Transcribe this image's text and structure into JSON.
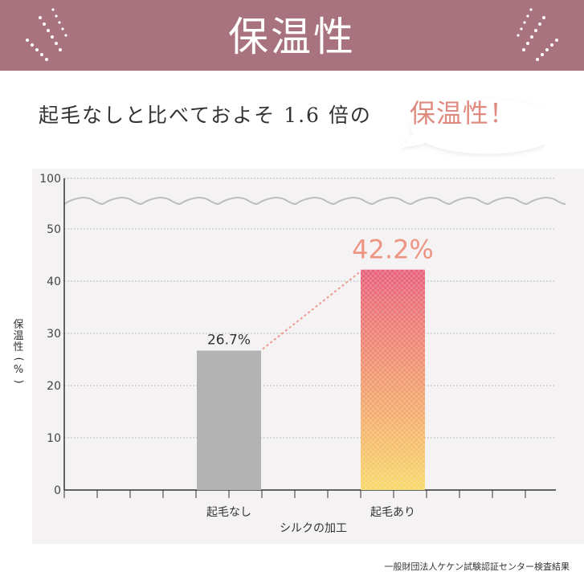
{
  "banner": {
    "title": "保温性"
  },
  "headline": {
    "text": "起毛なしと比べておよそ 1.6 倍の"
  },
  "bubble": {
    "text": "保温性！"
  },
  "chart_data": {
    "type": "bar",
    "categories": [
      "起毛なし",
      "起毛あり"
    ],
    "values": [
      26.7,
      42.2
    ],
    "value_labels": [
      "26.7%",
      "42.2%"
    ],
    "xlabel": "シルクの加工",
    "ylabel": "保温性（%）",
    "yticks": [
      0,
      10,
      20,
      30,
      40,
      50,
      100
    ],
    "axis_break": "between 50 and 100",
    "ylim": [
      0,
      100
    ],
    "grid": true,
    "colors": {
      "bar_without": "#b3b3b3",
      "bar_with_top": "#e8607c",
      "bar_with_bottom": "#f8d86a",
      "highlight_label": "#ee9483",
      "connector": "#ee9a90"
    }
  },
  "source": {
    "text": "一般財団法人ケケン試験認証センター検査結果"
  },
  "colors": {
    "banner": "#a8727e",
    "panel": "#f4f2f3",
    "bubble_text": "#de8a7e"
  }
}
